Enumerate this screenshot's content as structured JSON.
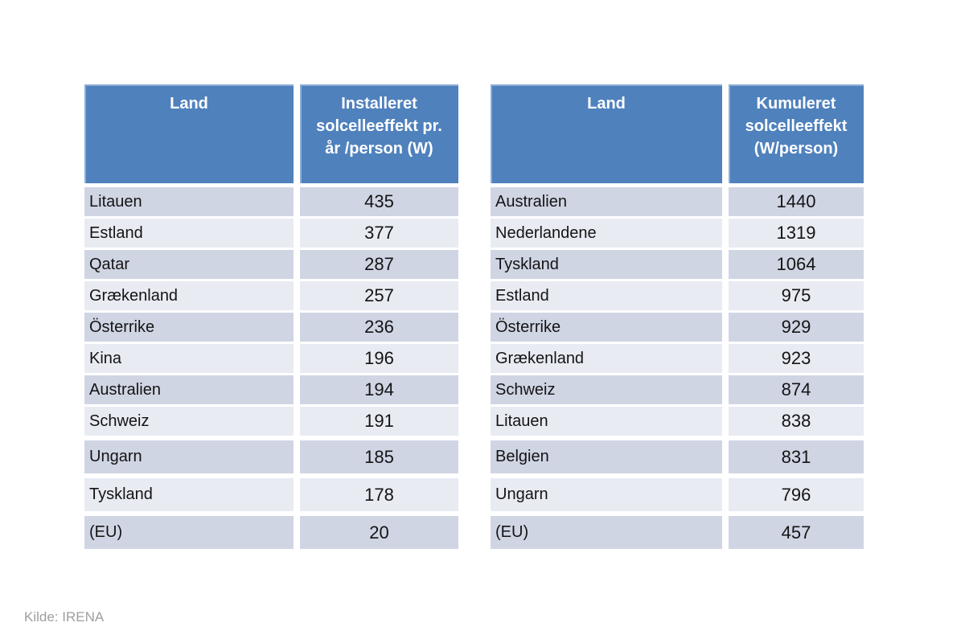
{
  "source_note": "Kilde: IRENA",
  "colors": {
    "header_bg": "#4F81BD",
    "header_text": "#FFFFFF",
    "row_dark": "#D0D5E4",
    "row_light": "#E9EBF3",
    "body_text": "#141414",
    "source_text": "#9E9E9E"
  },
  "chart_data": [
    {
      "type": "table",
      "title": "Installeret solcelleeffekt pr. år pr. person",
      "columns": [
        "Land",
        "Installeret solcelleeffekt pr. år /person (W)"
      ],
      "rows": [
        {
          "land": "Litauen",
          "value": 435
        },
        {
          "land": "Estland",
          "value": 377
        },
        {
          "land": "Qatar",
          "value": 287
        },
        {
          "land": "Grækenland",
          "value": 257
        },
        {
          "land": "Österrike",
          "value": 236
        },
        {
          "land": "Kina",
          "value": 196
        },
        {
          "land": "Australien",
          "value": 194
        },
        {
          "land": "Schweiz",
          "value": 191
        },
        {
          "land": "Ungarn",
          "value": 185
        },
        {
          "land": "Tyskland",
          "value": 178
        },
        {
          "land": "(EU)",
          "value": 20
        }
      ]
    },
    {
      "type": "table",
      "title": "Kumuleret solcelleeffekt pr. person",
      "columns": [
        "Land",
        "Kumuleret solcelleeffekt (W/person)"
      ],
      "rows": [
        {
          "land": "Australien",
          "value": 1440
        },
        {
          "land": "Nederlandene",
          "value": 1319
        },
        {
          "land": "Tyskland",
          "value": 1064
        },
        {
          "land": "Estland",
          "value": 975
        },
        {
          "land": "Österrike",
          "value": 929
        },
        {
          "land": "Grækenland",
          "value": 923
        },
        {
          "land": "Schweiz",
          "value": 874
        },
        {
          "land": "Litauen",
          "value": 838
        },
        {
          "land": "Belgien",
          "value": 831
        },
        {
          "land": "Ungarn",
          "value": 796
        },
        {
          "land": "(EU)",
          "value": 457
        }
      ]
    }
  ]
}
